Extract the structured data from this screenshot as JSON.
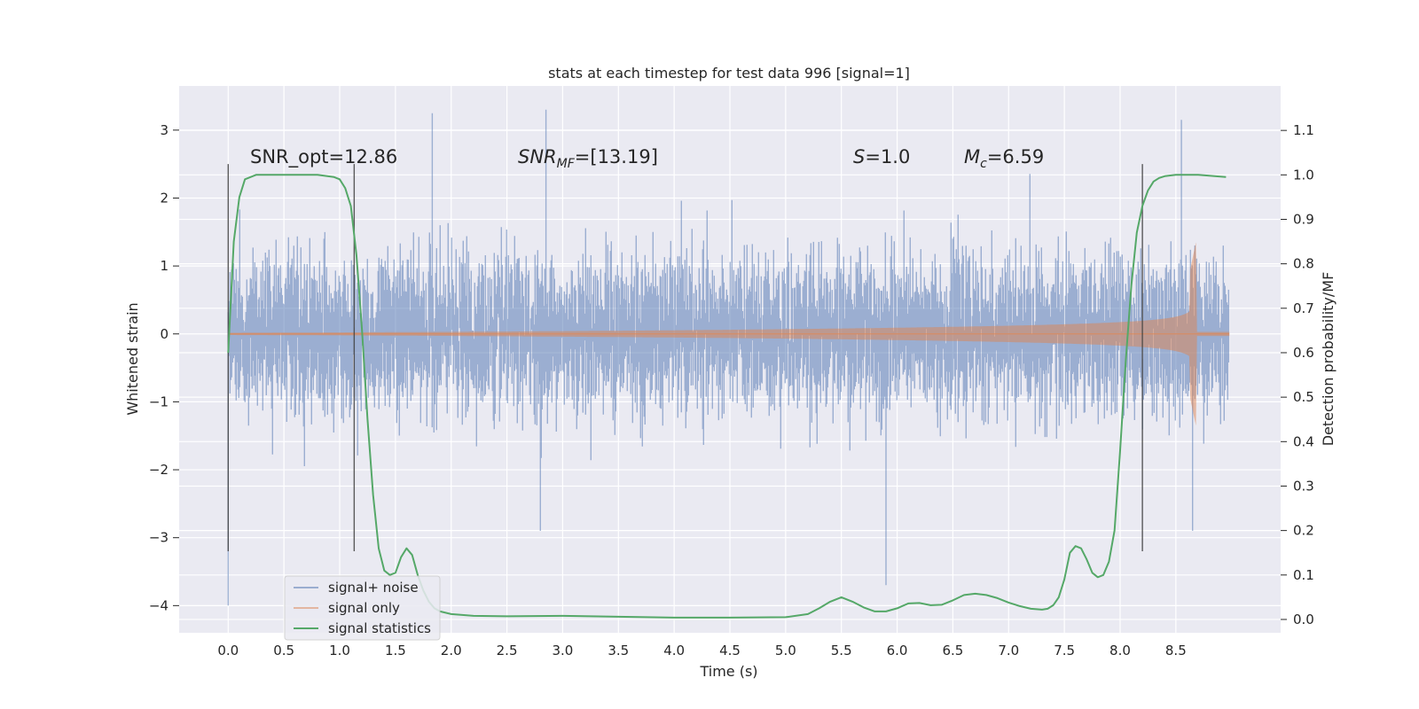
{
  "chart_data": {
    "type": "line",
    "title": "stats at each timestep for test data 996 [signal=1]",
    "xlabel": "Time (s)",
    "ylabel": "Whitened strain",
    "y2label": "Detection probability/MF",
    "xlim": [
      -0.44,
      9.44
    ],
    "ylim": [
      -4.4,
      3.65
    ],
    "y2lim": [
      -0.03,
      1.2
    ],
    "xticks": [
      "0.0",
      "0.5",
      "1.0",
      "1.5",
      "2.0",
      "2.5",
      "3.0",
      "3.5",
      "4.0",
      "4.5",
      "5.0",
      "5.5",
      "6.0",
      "6.5",
      "7.0",
      "7.5",
      "8.0",
      "8.5"
    ],
    "yticks": [
      "3",
      "2",
      "1",
      "0",
      "−1",
      "−2",
      "−3",
      "−4"
    ],
    "y2ticks": [
      "1.1",
      "1.0",
      "0.9",
      "0.8",
      "0.7",
      "0.6",
      "0.5",
      "0.4",
      "0.3",
      "0.2",
      "0.1",
      "0.0"
    ],
    "legend_position": "lower-left",
    "annotations": {
      "snr_opt": "SNR_opt=12.86",
      "snr_mf_main": "SNR",
      "snr_mf_sub": "MF",
      "snr_mf_value": "=[13.19]",
      "s_var": "S",
      "s_value": "=1.0",
      "mc_var": "M",
      "mc_sub": "c",
      "mc_value": "=6.59"
    },
    "vlines": [
      0.0,
      1.13,
      8.2
    ],
    "vline_range": [
      -3.2,
      2.5
    ],
    "series": [
      {
        "name": "signal+ noise",
        "color": "#4c72b0",
        "kind": "noise",
        "t_range": [
          0.0,
          8.98
        ],
        "typical_amplitude": 1.0,
        "peak_max": 3.3,
        "peak_min": -4.0
      },
      {
        "name": "signal only",
        "color": "#dd8452",
        "kind": "chirp",
        "t_range": [
          0.0,
          8.98
        ],
        "merger_time": 8.68,
        "peak_amplitude": 1.35
      },
      {
        "name": "signal statistics",
        "color": "#55a868",
        "kind": "line",
        "x": [
          0.0,
          0.05,
          0.1,
          0.15,
          0.25,
          0.4,
          0.6,
          0.8,
          0.95,
          1.0,
          1.05,
          1.1,
          1.15,
          1.2,
          1.25,
          1.3,
          1.35,
          1.4,
          1.45,
          1.5,
          1.55,
          1.6,
          1.65,
          1.7,
          1.75,
          1.8,
          1.85,
          1.9,
          2.0,
          2.2,
          2.5,
          3.0,
          3.5,
          4.0,
          4.5,
          5.0,
          5.2,
          5.3,
          5.4,
          5.5,
          5.6,
          5.7,
          5.8,
          5.9,
          6.0,
          6.1,
          6.2,
          6.3,
          6.4,
          6.5,
          6.6,
          6.7,
          6.8,
          6.9,
          7.0,
          7.1,
          7.2,
          7.3,
          7.35,
          7.4,
          7.45,
          7.5,
          7.55,
          7.6,
          7.65,
          7.7,
          7.75,
          7.8,
          7.85,
          7.9,
          7.95,
          8.0,
          8.05,
          8.1,
          8.15,
          8.2,
          8.25,
          8.3,
          8.35,
          8.4,
          8.5,
          8.6,
          8.7,
          8.8,
          8.95
        ],
        "y": [
          0.6,
          0.85,
          0.95,
          0.99,
          1.0,
          1.0,
          1.0,
          1.0,
          0.995,
          0.99,
          0.97,
          0.93,
          0.82,
          0.65,
          0.45,
          0.28,
          0.16,
          0.11,
          0.1,
          0.105,
          0.14,
          0.16,
          0.145,
          0.1,
          0.065,
          0.04,
          0.025,
          0.018,
          0.012,
          0.008,
          0.007,
          0.008,
          0.006,
          0.004,
          0.004,
          0.005,
          0.012,
          0.025,
          0.04,
          0.05,
          0.04,
          0.027,
          0.018,
          0.018,
          0.025,
          0.036,
          0.037,
          0.032,
          0.033,
          0.043,
          0.055,
          0.058,
          0.055,
          0.048,
          0.038,
          0.03,
          0.024,
          0.022,
          0.024,
          0.032,
          0.05,
          0.09,
          0.15,
          0.165,
          0.16,
          0.135,
          0.105,
          0.095,
          0.1,
          0.13,
          0.2,
          0.38,
          0.58,
          0.75,
          0.87,
          0.93,
          0.965,
          0.985,
          0.993,
          0.997,
          1.0,
          1.0,
          1.0,
          0.998,
          0.995
        ]
      }
    ]
  }
}
